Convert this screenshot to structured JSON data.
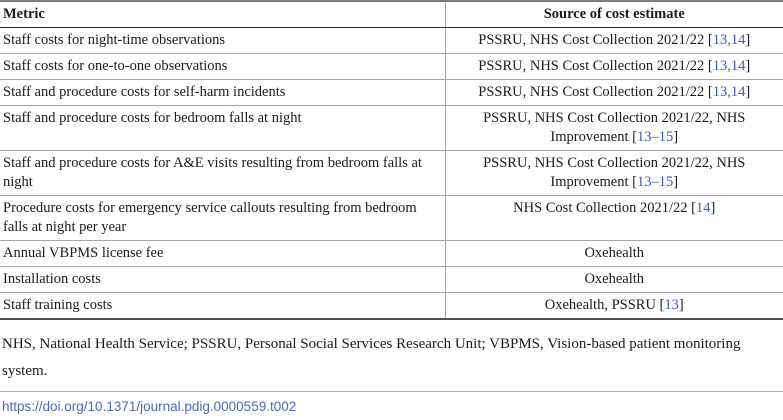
{
  "table": {
    "headers": {
      "metric": "Metric",
      "source": "Source of cost estimate"
    },
    "bracket_open": "[",
    "bracket_close": "]",
    "rows": [
      {
        "metric": "Staff costs for night-time observations",
        "source_text": "PSSRU, NHS Cost Collection 2021/22 ",
        "citation": "13,14"
      },
      {
        "metric": "Staff costs for one-to-one observations",
        "source_text": "PSSRU, NHS Cost Collection 2021/22 ",
        "citation": "13,14"
      },
      {
        "metric": "Staff and procedure costs for self-harm incidents",
        "source_text": "PSSRU, NHS Cost Collection 2021/22 ",
        "citation": "13,14"
      },
      {
        "metric": "Staff and procedure costs for bedroom falls at night",
        "source_text": "PSSRU, NHS Cost Collection 2021/22, NHS Improvement ",
        "citation": "13–15"
      },
      {
        "metric": "Staff and procedure costs for A&E visits resulting from bedroom falls at night",
        "source_text": "PSSRU, NHS Cost Collection 2021/22, NHS Improvement ",
        "citation": "13–15"
      },
      {
        "metric": "Procedure costs for emergency service callouts resulting from bedroom falls at night per year",
        "source_text": "NHS Cost Collection 2021/22 ",
        "citation": "14"
      },
      {
        "metric": "Annual VBPMS license fee",
        "source_text": "Oxehealth",
        "citation": null
      },
      {
        "metric": "Installation costs",
        "source_text": "Oxehealth",
        "citation": null
      },
      {
        "metric": "Staff training costs",
        "source_text": "Oxehealth, PSSRU ",
        "citation": "13"
      }
    ]
  },
  "footnote": "NHS, National Health Service; PSSRU, Personal Social Services Research Unit; VBPMS, Vision-based patient monitoring system.",
  "doi_link": "https://doi.org/10.1371/journal.pdig.0000559.t002",
  "colors": {
    "citation_link": "#3c5db8",
    "doi_link": "#5067b5",
    "table_top_border": "#7d7d7d",
    "table_bottom_border": "#4f4f4f",
    "header_underline": "#2e2e2e",
    "row_separator": "#a6a6a6"
  }
}
